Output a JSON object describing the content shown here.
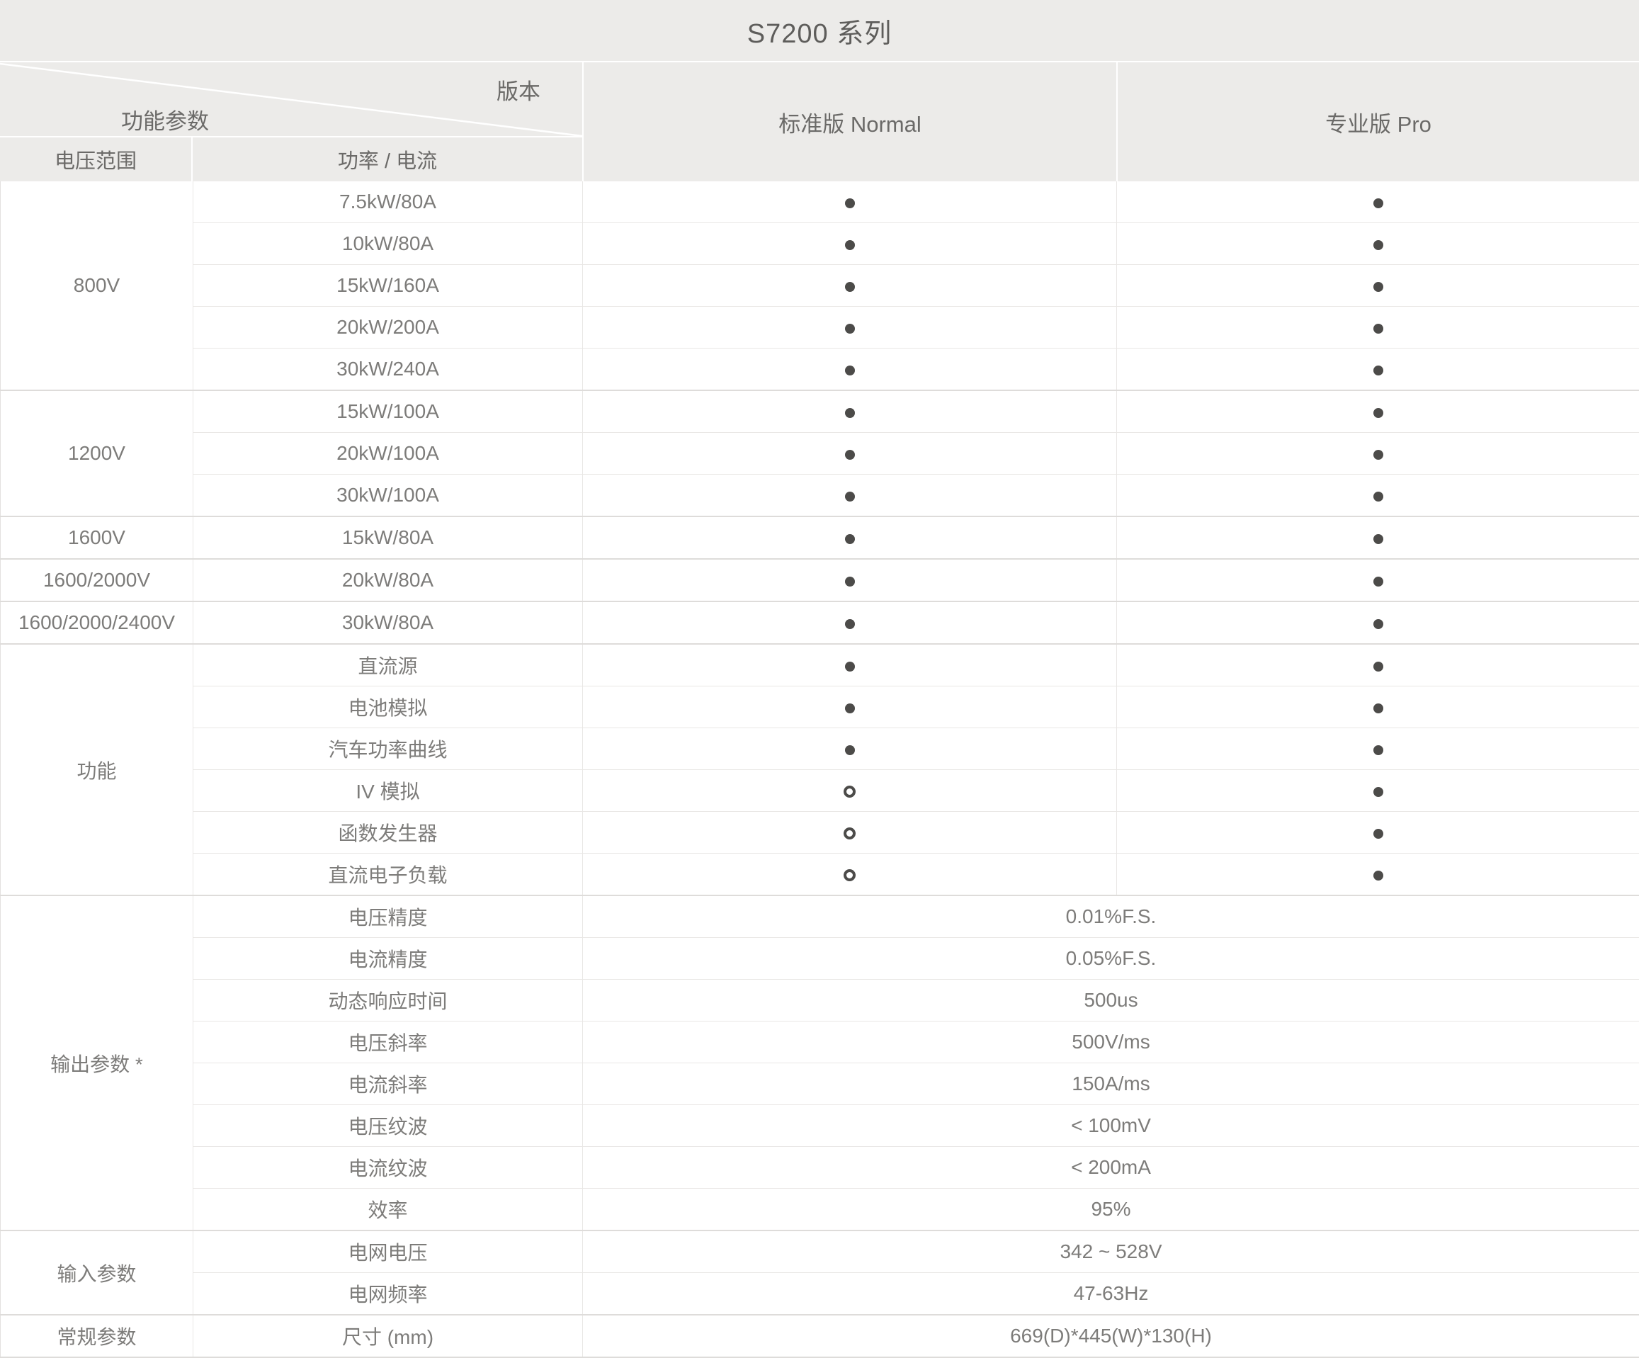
{
  "title": "S7200 系列",
  "header": {
    "corner_top": "版本",
    "corner_bottom": "功能参数",
    "sub_left": "电压范围",
    "sub_right": "功率 / 电流",
    "col_normal": "标准版 Normal",
    "col_pro": "专业版 Pro"
  },
  "colors": {
    "header_bg": "#ECEBE9",
    "dot": "#4C4B49",
    "body_text": "#7D7C7A"
  },
  "groups": [
    {
      "label": "800V",
      "rows": [
        {
          "param": "7.5kW/80A",
          "normal": "filled",
          "pro": "filled"
        },
        {
          "param": "10kW/80A",
          "normal": "filled",
          "pro": "filled"
        },
        {
          "param": "15kW/160A",
          "normal": "filled",
          "pro": "filled"
        },
        {
          "param": "20kW/200A",
          "normal": "filled",
          "pro": "filled"
        },
        {
          "param": "30kW/240A",
          "normal": "filled",
          "pro": "filled"
        }
      ]
    },
    {
      "label": "1200V",
      "rows": [
        {
          "param": "15kW/100A",
          "normal": "filled",
          "pro": "filled"
        },
        {
          "param": "20kW/100A",
          "normal": "filled",
          "pro": "filled"
        },
        {
          "param": "30kW/100A",
          "normal": "filled",
          "pro": "filled"
        }
      ]
    },
    {
      "label": "1600V",
      "rows": [
        {
          "param": "15kW/80A",
          "normal": "filled",
          "pro": "filled"
        }
      ]
    },
    {
      "label": "1600/2000V",
      "rows": [
        {
          "param": "20kW/80A",
          "normal": "filled",
          "pro": "filled"
        }
      ]
    },
    {
      "label": "1600/2000/2400V",
      "rows": [
        {
          "param": "30kW/80A",
          "normal": "filled",
          "pro": "filled"
        }
      ]
    },
    {
      "label": "功能",
      "rows": [
        {
          "param": "直流源",
          "normal": "filled",
          "pro": "filled"
        },
        {
          "param": "电池模拟",
          "normal": "filled",
          "pro": "filled"
        },
        {
          "param": "汽车功率曲线",
          "normal": "filled",
          "pro": "filled"
        },
        {
          "param": "IV 模拟",
          "normal": "hollow",
          "pro": "filled"
        },
        {
          "param": "函数发生器",
          "normal": "hollow",
          "pro": "filled"
        },
        {
          "param": "直流电子负载",
          "normal": "hollow",
          "pro": "filled"
        }
      ]
    },
    {
      "label": "输出参数 *",
      "rows": [
        {
          "param": "电压精度",
          "value": "0.01%F.S."
        },
        {
          "param": "电流精度",
          "value": "0.05%F.S."
        },
        {
          "param": "动态响应时间",
          "value": "500us"
        },
        {
          "param": "电压斜率",
          "value": "500V/ms"
        },
        {
          "param": "电流斜率",
          "value": "150A/ms"
        },
        {
          "param": "电压纹波",
          "value": "< 100mV"
        },
        {
          "param": "电流纹波",
          "value": "< 200mA"
        },
        {
          "param": "效率",
          "value": "95%"
        }
      ]
    },
    {
      "label": "输入参数",
      "rows": [
        {
          "param": "电网电压",
          "value": "342 ~ 528V"
        },
        {
          "param": "电网频率",
          "value": "47-63Hz"
        }
      ]
    },
    {
      "label": "常规参数",
      "rows": [
        {
          "param": "尺寸 (mm)",
          "value": "669(D)*445(W)*130(H)"
        }
      ]
    }
  ]
}
